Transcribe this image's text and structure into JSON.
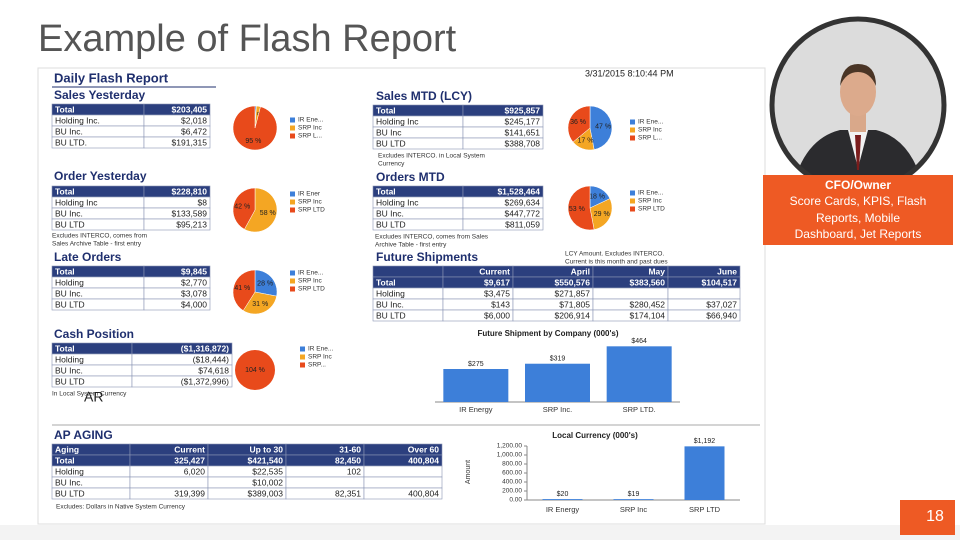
{
  "slide": {
    "title": "Example of Flash Report",
    "caption": [
      "CFO/Owner",
      "Score Cards, KPIS, Flash",
      "Reports, Mobile",
      "Dashboard, Jet Reports"
    ],
    "marker": "AR",
    "page_number": "18"
  },
  "report": {
    "title": "Daily Flash Report",
    "timestamp": "3/31/2015 8:10:44 PM",
    "sales_yesterday": {
      "title": "Sales Yesterday",
      "table": {
        "rows": [
          [
            "Total",
            "$203,405"
          ],
          [
            "Holding Inc.",
            "$2,018"
          ],
          [
            "BU Inc.",
            "$6,472"
          ],
          [
            "BU LTD.",
            "$191,315"
          ]
        ]
      },
      "pie": {
        "legend": [
          "IR Ene...",
          "SRP Inc",
          "SRP L..."
        ],
        "values": [
          1,
          3,
          95
        ],
        "value_labels": [
          null,
          "3 %",
          "95 %"
        ],
        "colors": [
          "#3d7fd9",
          "#f4a623",
          "#e84a1b"
        ]
      }
    },
    "sales_mtd": {
      "title": "Sales MTD (LCY)",
      "table": {
        "rows": [
          [
            "Total",
            "$925,857"
          ],
          [
            "Holding Inc",
            "$245,177"
          ],
          [
            "BU Inc",
            "$141,651"
          ],
          [
            "BU LTD",
            "$388,708"
          ]
        ]
      },
      "note": [
        "Excludes INTERCO. in Local System",
        "Currency"
      ],
      "pie": {
        "legend": [
          "IR Ene...",
          "SRP Inc",
          "SRP L..."
        ],
        "values": [
          47,
          17,
          36
        ],
        "value_labels": [
          "47 %",
          "17 %",
          "36 %"
        ],
        "colors": [
          "#3d7fd9",
          "#f4a623",
          "#e84a1b"
        ]
      }
    },
    "order_yesterday": {
      "title": "Order Yesterday",
      "table": {
        "rows": [
          [
            "Total",
            "$228,810"
          ],
          [
            "Holding Inc",
            "$8"
          ],
          [
            "BU Inc.",
            "$133,589"
          ],
          [
            "BU LTD",
            "$95,213"
          ]
        ]
      },
      "note": [
        "Excludes INTERCO, comes from",
        "Sales Archive Table - first entry"
      ],
      "pie": {
        "legend": [
          "IR Ener",
          "SRP Inc",
          "SRP LTD"
        ],
        "values": [
          0,
          58,
          42
        ],
        "value_labels": [
          null,
          "58 %",
          "42 %"
        ],
        "colors": [
          "#3d7fd9",
          "#f4a623",
          "#e84a1b"
        ]
      }
    },
    "orders_mtd": {
      "title": "Orders MTD",
      "table": {
        "rows": [
          [
            "Total",
            "$1,528,464"
          ],
          [
            "Holding Inc",
            "$269,634"
          ],
          [
            "BU Inc.",
            "$447,772"
          ],
          [
            "BU LTD",
            "$811,059"
          ]
        ]
      },
      "note": [
        "Excludes INTERCO, comes from Sales",
        "Archive Table - first entry"
      ],
      "pie": {
        "legend": [
          "IR Ene...",
          "SRP Inc",
          "SRP LTD"
        ],
        "values": [
          18,
          29,
          53
        ],
        "value_labels": [
          "18 %",
          "29 %",
          "53 %"
        ],
        "colors": [
          "#3d7fd9",
          "#f4a623",
          "#e84a1b"
        ]
      }
    },
    "late_orders": {
      "title": "Late Orders",
      "table": {
        "rows": [
          [
            "Total",
            "$9,845"
          ],
          [
            "Holding",
            "$2,770"
          ],
          [
            "BU Inc.",
            "$3,078"
          ],
          [
            "BU LTD",
            "$4,000"
          ]
        ]
      },
      "pie": {
        "legend": [
          "IR Ene...",
          "SRP Inc",
          "SRP LTD"
        ],
        "values": [
          28,
          31,
          41
        ],
        "value_labels": [
          "28 %",
          "31 %",
          "41 %"
        ],
        "colors": [
          "#3d7fd9",
          "#f4a623",
          "#e84a1b"
        ]
      }
    },
    "future_shipments": {
      "title": "Future Shipments",
      "note": [
        "LCY Amount. Excludes INTERCO.",
        "Current is this month and past dues"
      ],
      "table": {
        "headers": [
          null,
          "Current",
          "April",
          "May",
          "June"
        ],
        "rows": [
          [
            "Total",
            "$9,617",
            "$550,576",
            "$383,560",
            "$104,517"
          ],
          [
            "Holding",
            "$3,475",
            "$271,857",
            null,
            null
          ],
          [
            "BU Inc.",
            "$143",
            "$71,805",
            "$280,452",
            "$37,027"
          ],
          [
            "BU LTD",
            "$6,000",
            "$206,914",
            "$174,104",
            "$66,940"
          ]
        ]
      },
      "chart": {
        "title": "Future Shipment by Company (000's)",
        "categories": [
          "IR Energy",
          "SRP Inc.",
          "SRP LTD."
        ],
        "values": [
          275,
          319,
          464
        ],
        "value_labels": [
          "$275",
          "$319",
          "$464"
        ],
        "color": "#3d7fd9",
        "ylim": [
          0,
          500
        ]
      }
    },
    "cash_position": {
      "title": "Cash Position",
      "table": {
        "rows": [
          [
            "Total",
            "($1,316,872)"
          ],
          [
            "Holding",
            "($18,444)"
          ],
          [
            "BU Inc.",
            "$74,618"
          ],
          [
            "BU LTD",
            "($1,372,996)"
          ]
        ]
      },
      "note": [
        "In Local System Currency"
      ],
      "pie": {
        "legend": [
          "IR Ene...",
          "SRP Inc",
          "SRP..."
        ],
        "values": [
          104
        ],
        "value_labels": [
          "104 %"
        ],
        "colors": [
          "#e84a1b"
        ]
      }
    },
    "ap_aging": {
      "title": "AP AGING",
      "table": {
        "headers": [
          "Aging",
          "Current",
          "Up to 30",
          "31-60",
          "Over 60"
        ],
        "rows": [
          [
            "Total",
            "325,427",
            "$421,540",
            "82,450",
            "400,804"
          ],
          [
            "Holding",
            "6,020",
            "$22,535",
            "102",
            null
          ],
          [
            "BU Inc.",
            null,
            "$10,002",
            null,
            null
          ],
          [
            "BU LTD",
            "319,399",
            "$389,003",
            "82,351",
            "400,804"
          ]
        ]
      },
      "note": [
        "Excludes: Dollars in Native System Currency"
      ],
      "chart": {
        "title": "Local Currency (000's)",
        "y_label": "Amount",
        "categories": [
          "IR Energy",
          "SRP Inc",
          "SRP LTD"
        ],
        "values": [
          20,
          19,
          1192
        ],
        "value_labels": [
          "$20",
          "$19",
          "$1,192"
        ],
        "color": "#3d7fd9",
        "ylim": [
          0,
          1200
        ],
        "yticks": [
          {
            "value": 0,
            "label": "0.00"
          },
          {
            "value": 200,
            "label": "200.00"
          },
          {
            "value": 400,
            "label": "400.00"
          },
          {
            "value": 600,
            "label": "600.00"
          },
          {
            "value": 800,
            "label": "800.00"
          },
          {
            "value": 1000,
            "label": "1,000.00"
          },
          {
            "value": 1200,
            "label": "1,200.00"
          }
        ]
      }
    }
  }
}
